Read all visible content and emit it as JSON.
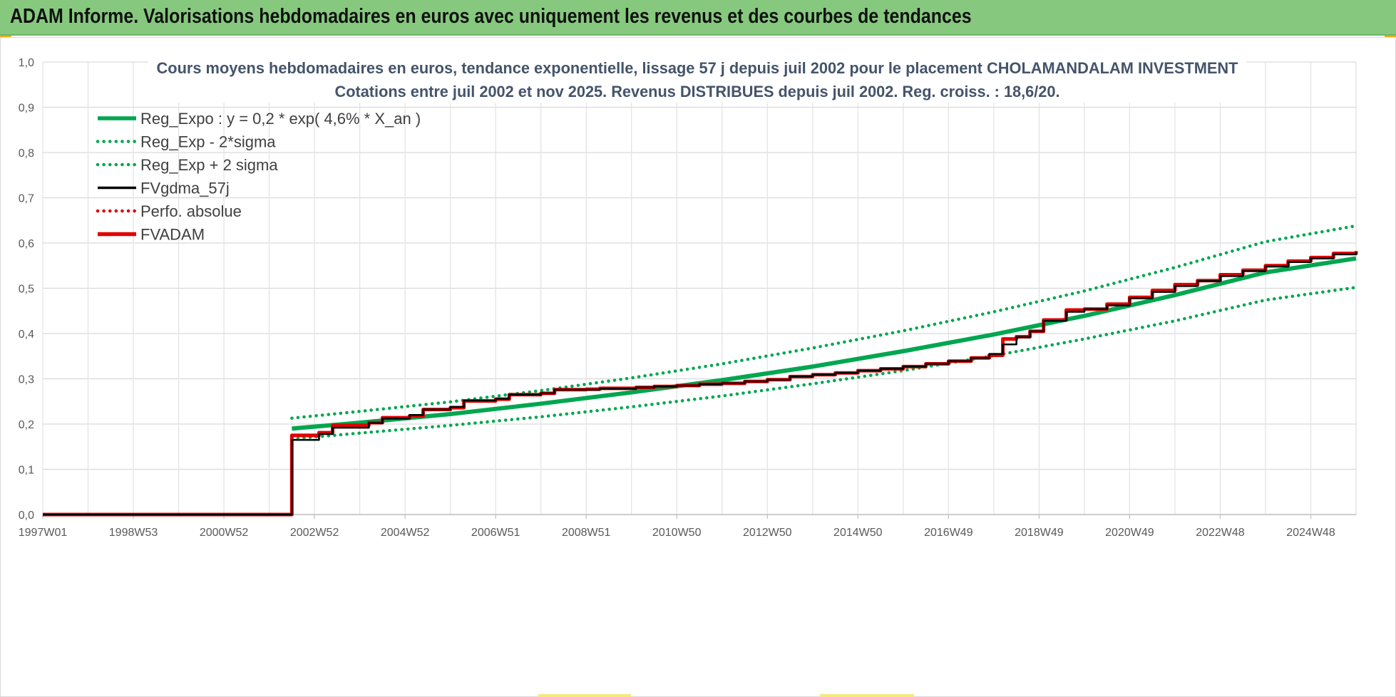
{
  "banner": {
    "title": "ADAM Informe. Valorisations hebdomadaires en euros avec uniquement les revenus et des courbes de tendances"
  },
  "chart_data": {
    "type": "line",
    "title_line1": "Cours moyens hebdomadaires en euros, tendance exponentielle, lissage 57 j depuis juil 2002 pour le placement CHOLAMANDALAM INVESTMENT",
    "title_line2": "Cotations entre juil 2002 et nov 2025. Revenus DISTRIBUES depuis juil 2002. Reg. croiss. : 18,6/20.",
    "xlabel": "",
    "ylabel": "",
    "x_ticks": [
      "1997W01",
      "1998W53",
      "2000W52",
      "2002W52",
      "2004W52",
      "2006W51",
      "2008W51",
      "2010W50",
      "2012W50",
      "2014W50",
      "2016W49",
      "2018W49",
      "2020W49",
      "2022W48",
      "2024W48"
    ],
    "x_range": [
      1997.0,
      2026.0
    ],
    "ylim": [
      0,
      1.0
    ],
    "y_ticks": [
      "0,0",
      "0,1",
      "0,2",
      "0,3",
      "0,4",
      "0,5",
      "0,6",
      "0,7",
      "0,8",
      "0,9",
      "1,0"
    ],
    "grid": true,
    "legend_position": "top-left",
    "series": [
      {
        "name": "Reg_Expo : y = 0,2 * exp( 4,6% *  X_an )",
        "color": "#00a650",
        "style": "solid",
        "x": [
          2002.5,
          2004,
          2006,
          2008,
          2010,
          2012,
          2014,
          2016,
          2018,
          2020,
          2022,
          2024,
          2026
        ],
        "y": [
          0.19,
          0.203,
          0.222,
          0.245,
          0.27,
          0.297,
          0.327,
          0.361,
          0.398,
          0.439,
          0.485,
          0.535,
          0.566
        ]
      },
      {
        "name": "Reg_Exp - 2*sigma",
        "color": "#00a650",
        "style": "dotted",
        "x": [
          2002.5,
          2004,
          2006,
          2008,
          2010,
          2012,
          2014,
          2016,
          2018,
          2020,
          2022,
          2024,
          2026
        ],
        "y": [
          0.167,
          0.18,
          0.197,
          0.216,
          0.238,
          0.262,
          0.289,
          0.318,
          0.351,
          0.388,
          0.428,
          0.474,
          0.502
        ]
      },
      {
        "name": "Reg_Exp + 2 sigma",
        "color": "#00a650",
        "style": "dotted",
        "x": [
          2002.5,
          2004,
          2006,
          2008,
          2010,
          2012,
          2014,
          2016,
          2018,
          2020,
          2022,
          2024,
          2026
        ],
        "y": [
          0.213,
          0.228,
          0.249,
          0.274,
          0.302,
          0.333,
          0.368,
          0.406,
          0.448,
          0.494,
          0.546,
          0.603,
          0.638
        ]
      },
      {
        "name": "FVgdma_57j",
        "color": "#000000",
        "style": "solid",
        "x": [
          1997.0,
          2002.45,
          2002.5,
          2003.1,
          2003.4,
          2004.2,
          2004.5,
          2005.1,
          2005.4,
          2006.0,
          2006.3,
          2007.0,
          2007.3,
          2008.0,
          2008.3,
          2009.0,
          2009.3,
          2010.1,
          2010.5,
          2011.0,
          2011.5,
          2012.0,
          2012.5,
          2013.0,
          2013.5,
          2014.0,
          2014.5,
          2015.0,
          2015.5,
          2016.0,
          2016.5,
          2017.0,
          2017.5,
          2017.9,
          2018.2,
          2018.5,
          2018.8,
          2019.1,
          2019.6,
          2020.0,
          2020.5,
          2021.0,
          2021.5,
          2022.0,
          2022.5,
          2023.0,
          2023.5,
          2024.0,
          2024.5,
          2025.0,
          2025.5,
          2026.0
        ],
        "y": [
          0.0,
          0.0,
          0.165,
          0.178,
          0.192,
          0.202,
          0.212,
          0.22,
          0.232,
          0.238,
          0.252,
          0.256,
          0.265,
          0.268,
          0.276,
          0.276,
          0.278,
          0.281,
          0.283,
          0.285,
          0.288,
          0.29,
          0.294,
          0.298,
          0.305,
          0.309,
          0.313,
          0.318,
          0.322,
          0.327,
          0.333,
          0.339,
          0.346,
          0.355,
          0.376,
          0.392,
          0.405,
          0.428,
          0.448,
          0.454,
          0.462,
          0.478,
          0.492,
          0.505,
          0.516,
          0.527,
          0.538,
          0.548,
          0.558,
          0.566,
          0.575,
          0.581
        ]
      },
      {
        "name": "Perfo. absolue",
        "color": "#e00000",
        "style": "dotted",
        "x": [],
        "y": []
      },
      {
        "name": "FVADAM",
        "color": "#e00000",
        "style": "solid-thick",
        "x": [
          1997.0,
          2002.45,
          2002.5,
          2003.1,
          2003.4,
          2004.2,
          2004.5,
          2005.1,
          2005.4,
          2006.0,
          2006.3,
          2007.0,
          2007.3,
          2008.0,
          2008.3,
          2009.0,
          2009.3,
          2010.1,
          2010.5,
          2011.0,
          2011.5,
          2012.0,
          2012.5,
          2013.0,
          2013.5,
          2014.0,
          2014.5,
          2015.0,
          2015.5,
          2016.0,
          2016.5,
          2017.0,
          2017.5,
          2017.9,
          2018.2,
          2018.5,
          2018.8,
          2019.1,
          2019.6,
          2020.0,
          2020.5,
          2021.0,
          2021.5,
          2022.0,
          2022.5,
          2023.0,
          2023.5,
          2024.0,
          2024.5,
          2025.0,
          2025.5,
          2026.0
        ],
        "y": [
          0.0,
          0.0,
          0.175,
          0.181,
          0.197,
          0.203,
          0.214,
          0.218,
          0.232,
          0.236,
          0.251,
          0.255,
          0.265,
          0.268,
          0.276,
          0.277,
          0.279,
          0.281,
          0.283,
          0.285,
          0.288,
          0.29,
          0.294,
          0.298,
          0.305,
          0.309,
          0.313,
          0.318,
          0.322,
          0.327,
          0.333,
          0.339,
          0.346,
          0.352,
          0.388,
          0.393,
          0.405,
          0.43,
          0.452,
          0.454,
          0.465,
          0.48,
          0.495,
          0.508,
          0.517,
          0.53,
          0.54,
          0.55,
          0.56,
          0.568,
          0.577,
          0.582
        ]
      }
    ]
  }
}
